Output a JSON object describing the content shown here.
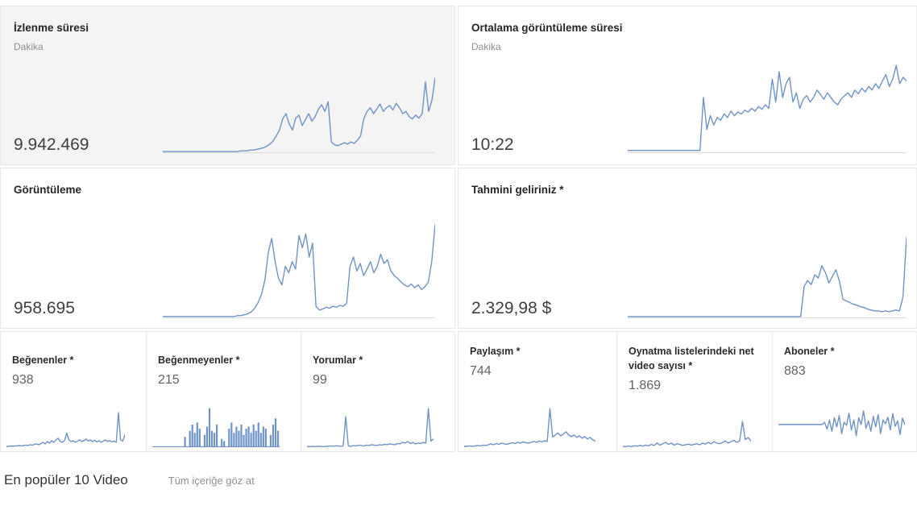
{
  "colors": {
    "sparkline": "#6f93c6",
    "baseline": "#dcdcdc",
    "selected_card_bg": "#f4f4f4",
    "card_border": "#e8e8e8"
  },
  "cards": {
    "watch_time": {
      "title": "İzlenme süresi",
      "subtitle": "Dakika",
      "value": "9.942.469"
    },
    "avg_duration": {
      "title": "Ortalama görüntüleme süresi",
      "subtitle": "Dakika",
      "value": "10:22"
    },
    "views": {
      "title": "Görüntüleme",
      "value": "958.695"
    },
    "revenue": {
      "title": "Tahmini geliriniz *",
      "value": "2.329,98 $"
    },
    "likes": {
      "title": "Beğenenler *",
      "value": "938"
    },
    "dislikes": {
      "title": "Beğenmeyenler *",
      "value": "215"
    },
    "comments": {
      "title": "Yorumlar *",
      "value": "99"
    },
    "shares": {
      "title": "Paylaşım *",
      "value": "744"
    },
    "playlist_net": {
      "title": "Oynatma listelerindeki net video sayısı *",
      "value": "1.869"
    },
    "subscribers": {
      "title": "Aboneler *",
      "value": "883"
    }
  },
  "footer": {
    "title": "En popüler 10 Video",
    "link": "Tüm içeriğe göz at"
  },
  "chart_data": [
    {
      "id": "watch_time_spark",
      "type": "line",
      "title": "İzlenme süresi (Dakika)",
      "total_displayed": "9.942.469",
      "unit": "relative height 0-100 (unlabeled sparkline)",
      "values": [
        1,
        1,
        1,
        1,
        1,
        1,
        1,
        1,
        1,
        1,
        1,
        1,
        1,
        1,
        1,
        1,
        1,
        1,
        1,
        1,
        1,
        1,
        1,
        1,
        2,
        2,
        2,
        3,
        3,
        4,
        5,
        6,
        8,
        11,
        15,
        22,
        30,
        45,
        52,
        38,
        30,
        46,
        50,
        36,
        44,
        52,
        42,
        48,
        58,
        64,
        55,
        68,
        14,
        10,
        9,
        11,
        13,
        11,
        14,
        12,
        16,
        22,
        45,
        55,
        60,
        52,
        58,
        65,
        55,
        60,
        63,
        57,
        66,
        60,
        52,
        55,
        48,
        45,
        50,
        46,
        52,
        95,
        55,
        70,
        100
      ]
    },
    {
      "id": "avg_duration_spark",
      "type": "line",
      "title": "Ortalama görüntüleme süresi (Dakika)",
      "total_displayed": "10:22",
      "unit": "relative height 0-100 (unlabeled sparkline)",
      "values": [
        2,
        2,
        2,
        2,
        2,
        2,
        2,
        2,
        2,
        2,
        2,
        2,
        2,
        2,
        2,
        2,
        2,
        2,
        2,
        2,
        2,
        2,
        60,
        25,
        40,
        30,
        38,
        35,
        42,
        38,
        45,
        40,
        44,
        42,
        46,
        44,
        48,
        45,
        50,
        47,
        52,
        48,
        80,
        55,
        88,
        60,
        75,
        82,
        55,
        65,
        48,
        58,
        62,
        55,
        60,
        68,
        63,
        58,
        65,
        60,
        55,
        52,
        58,
        62,
        65,
        60,
        68,
        64,
        70,
        66,
        72,
        68,
        75,
        70,
        78,
        85,
        72,
        80,
        95,
        75,
        82,
        78
      ]
    },
    {
      "id": "views_spark",
      "type": "line",
      "title": "Görüntüleme",
      "total_displayed": "958.695",
      "unit": "relative height 0-100 (unlabeled sparkline)",
      "values": [
        1,
        1,
        1,
        1,
        1,
        1,
        1,
        1,
        1,
        1,
        1,
        1,
        1,
        1,
        1,
        1,
        1,
        1,
        1,
        1,
        1,
        1,
        2,
        2,
        3,
        4,
        6,
        10,
        16,
        25,
        40,
        70,
        85,
        60,
        42,
        35,
        55,
        48,
        60,
        52,
        88,
        75,
        90,
        65,
        80,
        12,
        8,
        9,
        11,
        10,
        12,
        11,
        13,
        12,
        15,
        55,
        65,
        50,
        58,
        45,
        52,
        60,
        48,
        55,
        68,
        58,
        62,
        50,
        45,
        42,
        38,
        35,
        33,
        36,
        32,
        35,
        30,
        33,
        38,
        60,
        100
      ]
    },
    {
      "id": "revenue_spark",
      "type": "line",
      "title": "Tahmini geliriniz *",
      "total_displayed": "2.329,98 $",
      "unit": "relative height 0-100 (unlabeled sparkline)",
      "values": [
        1,
        1,
        1,
        1,
        1,
        1,
        1,
        1,
        1,
        1,
        1,
        1,
        1,
        1,
        1,
        1,
        1,
        1,
        1,
        1,
        1,
        1,
        1,
        1,
        1,
        1,
        1,
        1,
        1,
        1,
        1,
        1,
        1,
        1,
        1,
        1,
        1,
        1,
        1,
        1,
        1,
        1,
        1,
        1,
        1,
        1,
        1,
        1,
        1,
        1,
        38,
        45,
        40,
        52,
        48,
        63,
        55,
        42,
        50,
        58,
        44,
        22,
        20,
        18,
        16,
        15,
        13,
        12,
        10,
        9,
        8,
        8,
        7,
        8,
        7,
        8,
        9,
        8,
        25,
        97
      ]
    },
    {
      "id": "likes_spark",
      "type": "line",
      "title": "Beğenenler *",
      "total_displayed": "938",
      "unit": "relative height 0-100 (unlabeled sparkline)",
      "values": [
        2,
        2,
        3,
        2,
        3,
        3,
        4,
        3,
        4,
        5,
        4,
        6,
        5,
        7,
        8,
        6,
        9,
        12,
        8,
        14,
        10,
        16,
        12,
        18,
        22,
        14,
        12,
        16,
        35,
        18,
        14,
        16,
        12,
        15,
        18,
        14,
        16,
        20,
        15,
        18,
        14,
        17,
        13,
        16,
        12,
        15,
        18,
        14,
        16,
        13,
        15,
        12,
        85,
        18,
        15,
        30
      ]
    },
    {
      "id": "dislikes_spark",
      "type": "bar",
      "title": "Beğenmeyenler *",
      "total_displayed": "215",
      "unit": "relative height 0-100 (unlabeled sparkline)",
      "values": [
        0,
        0,
        0,
        0,
        0,
        0,
        0,
        0,
        0,
        0,
        0,
        0,
        0,
        25,
        0,
        40,
        55,
        35,
        60,
        45,
        0,
        30,
        50,
        95,
        40,
        35,
        55,
        0,
        20,
        15,
        0,
        45,
        60,
        35,
        50,
        40,
        55,
        30,
        45,
        50,
        35,
        55,
        40,
        60,
        35,
        50,
        45,
        0,
        30,
        55,
        70,
        40
      ]
    },
    {
      "id": "comments_spark",
      "type": "line",
      "title": "Yorumlar *",
      "total_displayed": "99",
      "unit": "relative height 0-100 (unlabeled sparkline)",
      "values": [
        2,
        1,
        2,
        1,
        2,
        2,
        1,
        2,
        2,
        3,
        2,
        3,
        3,
        2,
        3,
        75,
        3,
        2,
        4,
        3,
        5,
        4,
        3,
        5,
        4,
        6,
        5,
        4,
        6,
        5,
        7,
        6,
        8,
        7,
        6,
        9,
        8,
        12,
        10,
        14,
        9,
        12,
        8,
        10,
        9,
        12,
        10,
        95,
        15,
        20
      ]
    },
    {
      "id": "shares_spark",
      "type": "line",
      "title": "Paylaşım *",
      "total_displayed": "744",
      "unit": "relative height 0-100 (unlabeled sparkline)",
      "values": [
        2,
        2,
        3,
        2,
        3,
        4,
        3,
        5,
        4,
        6,
        8,
        6,
        9,
        7,
        10,
        8,
        7,
        9,
        11,
        9,
        12,
        10,
        13,
        11,
        10,
        12,
        14,
        12,
        15,
        13,
        16,
        14,
        95,
        25,
        30,
        35,
        28,
        32,
        38,
        30,
        26,
        30,
        24,
        28,
        22,
        26,
        20,
        24,
        18,
        15
      ]
    },
    {
      "id": "playlist_net_spark",
      "type": "line",
      "title": "Oynatma listelerindeki net video sayısı *",
      "total_displayed": "1.869",
      "unit": "relative height 0-100 (unlabeled sparkline)",
      "values": [
        2,
        2,
        3,
        2,
        4,
        3,
        5,
        3,
        6,
        4,
        8,
        5,
        12,
        6,
        10,
        14,
        8,
        12,
        6,
        10,
        8,
        5,
        7,
        9,
        6,
        8,
        10,
        7,
        12,
        9,
        14,
        10,
        16,
        12,
        10,
        14,
        18,
        12,
        16,
        20,
        14,
        18,
        75,
        22,
        28,
        18
      ]
    },
    {
      "id": "subscribers_spark",
      "type": "line",
      "title": "Aboneler *",
      "total_displayed": "883",
      "unit": "relative height 0-100 (unlabeled sparkline)",
      "values": [
        50,
        50,
        50,
        50,
        50,
        50,
        50,
        50,
        50,
        50,
        50,
        50,
        50,
        50,
        50,
        50,
        50,
        50,
        50,
        55,
        40,
        60,
        35,
        65,
        45,
        70,
        30,
        55,
        48,
        75,
        38,
        60,
        25,
        65,
        50,
        80,
        42,
        58,
        35,
        68,
        45,
        72,
        30,
        60,
        52,
        66,
        38,
        74,
        46,
        58,
        28,
        64,
        50
      ]
    }
  ]
}
